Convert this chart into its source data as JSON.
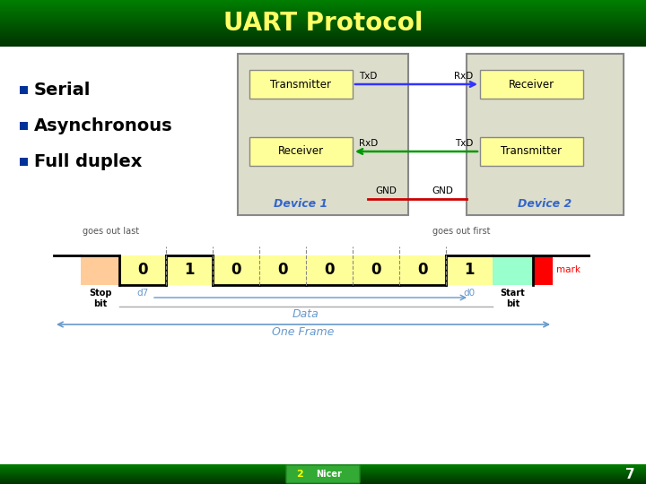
{
  "title": "UART Protocol",
  "title_color": "#FFFF66",
  "footer_bg": "#006600",
  "slide_bg": "#FFFFFF",
  "bullet_points": [
    "Serial",
    "Asynchronous",
    "Full duplex"
  ],
  "bullet_color": "#000000",
  "bullet_square_color": "#003399",
  "page_number": "7",
  "device1_label": "Device 1",
  "device2_label": "Device 2",
  "transmitter_label": "Transmitter",
  "receiver_label": "Receiver",
  "box_fill": "#FFFF99",
  "box_border": "#888888",
  "device_fill": "#DDDDCC",
  "device_border": "#888888",
  "arrow_blue": "#3333FF",
  "arrow_green": "#009900",
  "gnd_color": "#CC0000",
  "device_label_color": "#3366CC",
  "frame_bits": [
    0,
    1,
    0,
    0,
    0,
    0,
    0,
    1
  ],
  "stop_bit_color": "#FFCC99",
  "start_bit_color": "#99FFCC",
  "data_fill": "#FFFF99",
  "frame_label_color": "#6699CC",
  "data_label_color": "#6699CC",
  "goes_out_last": "goes out last",
  "goes_out_first": "goes out first",
  "d7_label": "d7",
  "d0_label": "d0",
  "data_label": "Data",
  "one_frame_label": "One Frame",
  "start_bit_label": "Start\nbit",
  "stop_bit_label": "Stop\nbit",
  "mark_label": "mark"
}
